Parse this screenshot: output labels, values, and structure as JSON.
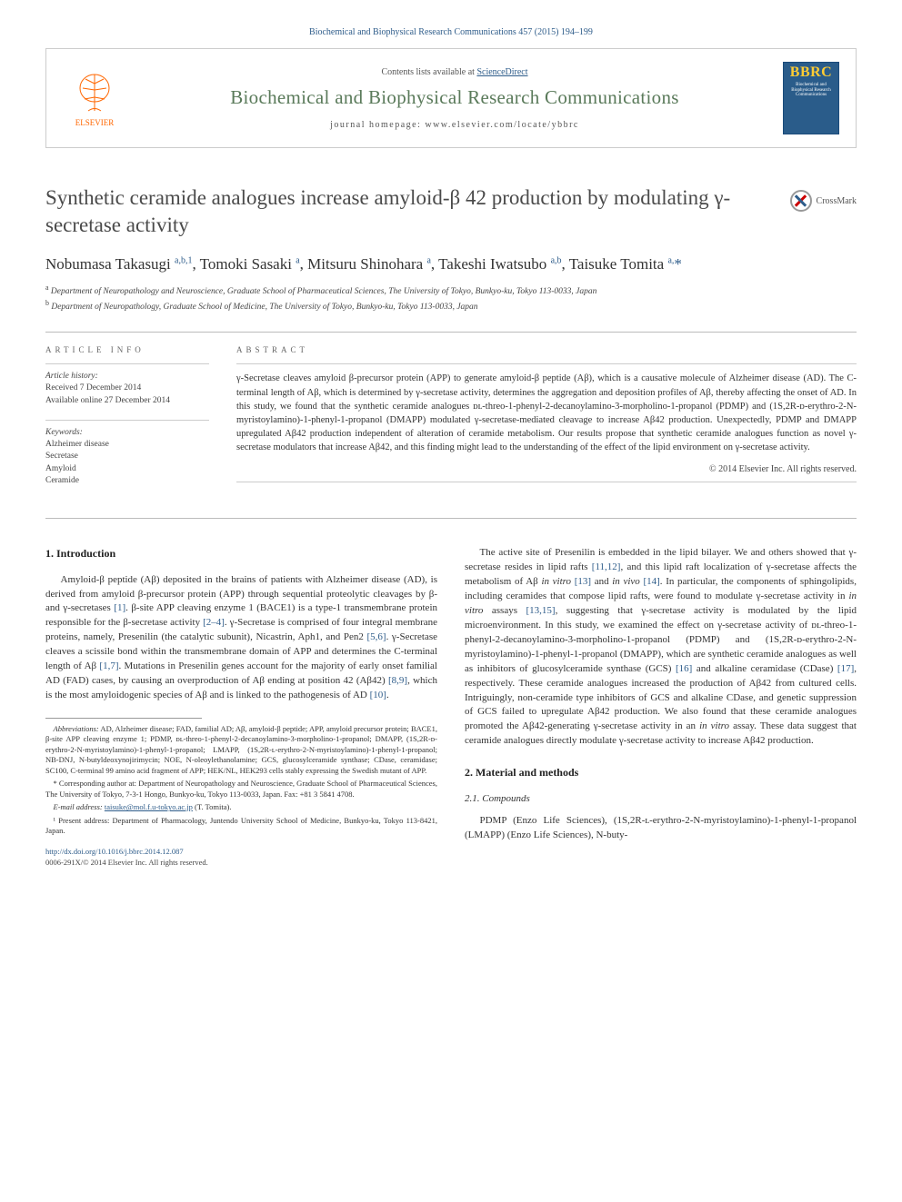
{
  "citation": "Biochemical and Biophysical Research Communications 457 (2015) 194–199",
  "header": {
    "contents_prefix": "Contents lists available at ",
    "contents_link": "ScienceDirect",
    "journal_name": "Biochemical and Biophysical Research Communications",
    "homepage_prefix": "journal homepage: ",
    "homepage_url": "www.elsevier.com/locate/ybbrc",
    "publisher_label": "ELSEVIER",
    "cover_abbr": "BBRC",
    "cover_text": "Biochemical and Biophysical Research Communications"
  },
  "title": "Synthetic ceramide analogues increase amyloid-β 42 production by modulating γ-secretase activity",
  "crossmark_label": "CrossMark",
  "authors_html": "Nobumasa Takasugi <sup>a,b,1</sup>, Tomoki Sasaki <sup>a</sup>, Mitsuru Shinohara <sup>a</sup>, Takeshi Iwatsubo <sup>a,b</sup>, Taisuke Tomita <sup>a,</sup><span class='def'>*</span>",
  "affiliations": {
    "a": "Department of Neuropathology and Neuroscience, Graduate School of Pharmaceutical Sciences, The University of Tokyo, Bunkyo-ku, Tokyo 113-0033, Japan",
    "b": "Department of Neuropathology, Graduate School of Medicine, The University of Tokyo, Bunkyo-ku, Tokyo 113-0033, Japan"
  },
  "article_info": {
    "heading": "ARTICLE INFO",
    "history_label": "Article history:",
    "received": "Received 7 December 2014",
    "available": "Available online 27 December 2014",
    "keywords_label": "Keywords:",
    "keywords": [
      "Alzheimer disease",
      "Secretase",
      "Amyloid",
      "Ceramide"
    ]
  },
  "abstract": {
    "heading": "ABSTRACT",
    "text": "γ-Secretase cleaves amyloid β-precursor protein (APP) to generate amyloid-β peptide (Aβ), which is a causative molecule of Alzheimer disease (AD). The C-terminal length of Aβ, which is determined by γ-secretase activity, determines the aggregation and deposition profiles of Aβ, thereby affecting the onset of AD. In this study, we found that the synthetic ceramide analogues ᴅʟ-threo-1-phenyl-2-decanoylamino-3-morpholino-1-propanol (PDMP) and (1S,2R-ᴅ-erythro-2-N-myristoylamino)-1-phenyl-1-propanol (DMAPP) modulated γ-secretase-mediated cleavage to increase Aβ42 production. Unexpectedly, PDMP and DMAPP upregulated Aβ42 production independent of alteration of ceramide metabolism. Our results propose that synthetic ceramide analogues function as novel γ-secretase modulators that increase Aβ42, and this finding might lead to the understanding of the effect of the lipid environment on γ-secretase activity.",
    "copyright": "© 2014 Elsevier Inc. All rights reserved."
  },
  "sections": {
    "intro_heading": "1. Introduction",
    "intro_p1": "Amyloid-β peptide (Aβ) deposited in the brains of patients with Alzheimer disease (AD), is derived from amyloid β-precursor protein (APP) through sequential proteolytic cleavages by β- and γ-secretases [1]. β-site APP cleaving enzyme 1 (BACE1) is a type-1 transmembrane protein responsible for the β-secretase activity [2–4]. γ-Secretase is comprised of four integral membrane proteins, namely, Presenilin (the catalytic subunit), Nicastrin, Aph1, and Pen2 [5,6]. γ-Secretase cleaves a scissile bond within the transmembrane domain of APP and determines the C-terminal length of Aβ [1,7]. Mutations in Presenilin genes account for the majority of early onset familial AD (FAD) cases, by causing an overproduction of Aβ ending at position 42 (Aβ42) [8,9], which is the most amyloidogenic species of Aβ and is linked to the pathogenesis of AD [10].",
    "intro_p2": "The active site of Presenilin is embedded in the lipid bilayer. We and others showed that γ-secretase resides in lipid rafts [11,12], and this lipid raft localization of γ-secretase affects the metabolism of Aβ in vitro [13] and in vivo [14]. In particular, the components of sphingolipids, including ceramides that compose lipid rafts, were found to modulate γ-secretase activity in in vitro assays [13,15], suggesting that γ-secretase activity is modulated by the lipid microenvironment. In this study, we examined the effect on γ-secretase activity of ᴅʟ-threo-1-phenyl-2-decanoylamino-3-morpholino-1-propanol (PDMP) and (1S,2R-ᴅ-erythro-2-N-myristoylamino)-1-phenyl-1-propanol (DMAPP), which are synthetic ceramide analogues as well as inhibitors of glucosylceramide synthase (GCS) [16] and alkaline ceramidase (CDase) [17], respectively. These ceramide analogues increased the production of Aβ42 from cultured cells. Intriguingly, non-ceramide type inhibitors of GCS and alkaline CDase, and genetic suppression of GCS failed to upregulate Aβ42 production. We also found that these ceramide analogues promoted the Aβ42-generating γ-secretase activity in an in vitro assay. These data suggest that ceramide analogues directly modulate γ-secretase activity to increase Aβ42 production.",
    "mm_heading": "2. Material and methods",
    "compounds_heading": "2.1. Compounds",
    "compounds_p": "PDMP (Enzo Life Sciences), (1S,2R-ʟ-erythro-2-N-myristoylamino)-1-phenyl-1-propanol (LMAPP) (Enzo Life Sciences), N-buty-"
  },
  "footnotes": {
    "abbrev_label": "Abbreviations:",
    "abbrev_text": " AD, Alzheimer disease; FAD, familial AD; Aβ, amyloid-β peptide; APP, amyloid precursor protein; BACE1, β-site APP cleaving enzyme 1; PDMP, ᴅʟ-threo-1-phenyl-2-decanoylamino-3-morpholino-1-propanol; DMAPP, (1S,2R-ᴅ-erythro-2-N-myristoylamino)-1-phenyl-1-propanol; LMAPP, (1S,2R-ʟ-erythro-2-N-myristoylamino)-1-phenyl-1-propanol; NB-DNJ, N-butyldeoxynojirimycin; NOE, N-oleoylethanolamine; GCS, glucosylceramide synthase; CDase, ceramidase; SC100, C-terminal 99 amino acid fragment of APP; HEK/NL, HEK293 cells stably expressing the Swedish mutant of APP.",
    "corresponding": "* Corresponding author at: Department of Neuropathology and Neuroscience, Graduate School of Pharmaceutical Sciences, The University of Tokyo, 7-3-1 Hongo, Bunkyo-ku, Tokyo 113-0033, Japan. Fax: +81 3 5841 4708.",
    "email_label": "E-mail address: ",
    "email": "taisuke@mol.f.u-tokyo.ac.jp",
    "email_suffix": " (T. Tomita).",
    "present": "¹ Present address: Department of Pharmacology, Juntendo University School of Medicine, Bunkyo-ku, Tokyo 113-8421, Japan."
  },
  "footer": {
    "doi": "http://dx.doi.org/10.1016/j.bbrc.2014.12.087",
    "issn_copyright": "0006-291X/© 2014 Elsevier Inc. All rights reserved."
  },
  "ref_links": {
    "r1": "[1]",
    "r2_4": "[2–4]",
    "r5_6": "[5,6]",
    "r1_7": "[1,7]",
    "r8_9": "[8,9]",
    "r10": "[10]",
    "r11_12": "[11,12]",
    "r13": "[13]",
    "r14": "[14]",
    "r13_15": "[13,15]",
    "r16": "[16]",
    "r17": "[17]"
  },
  "colors": {
    "link": "#2e5c8a",
    "publisher": "#ff6600",
    "journal_title": "#5a7a5a"
  }
}
